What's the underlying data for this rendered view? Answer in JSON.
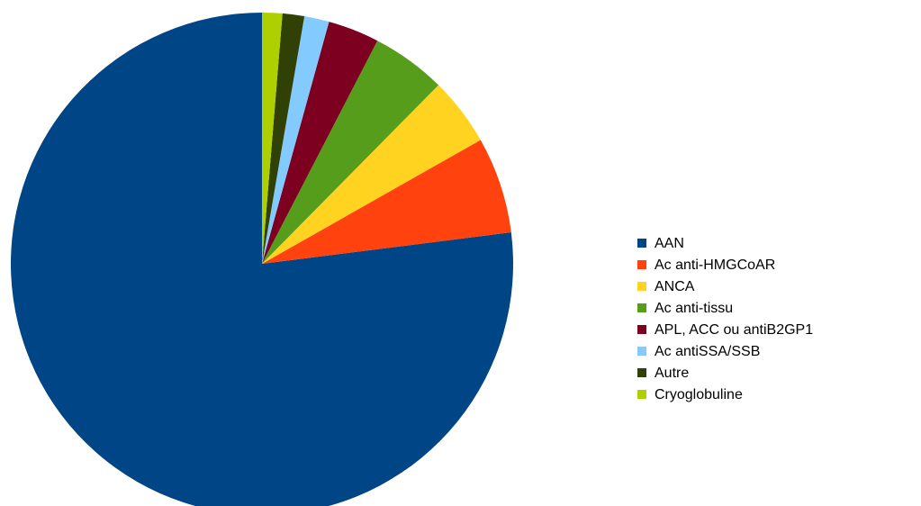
{
  "chart_data": {
    "type": "pie",
    "categories": [
      "AAN",
      "Ac anti-HMGCoAR",
      "ANCA",
      "Ac anti-tissu",
      "APL, ACC ou antiB2GP1",
      "Ac antiSSA/SSB",
      "Autre",
      "Cryoglobuline"
    ],
    "values": [
      77,
      6.2,
      4.4,
      4.8,
      3.3,
      1.6,
      1.4,
      1.3
    ],
    "colors": [
      "#004586",
      "#ff420e",
      "#ffd320",
      "#579d1c",
      "#7e0021",
      "#83caff",
      "#314004",
      "#aecf00"
    ],
    "legend": "right"
  }
}
